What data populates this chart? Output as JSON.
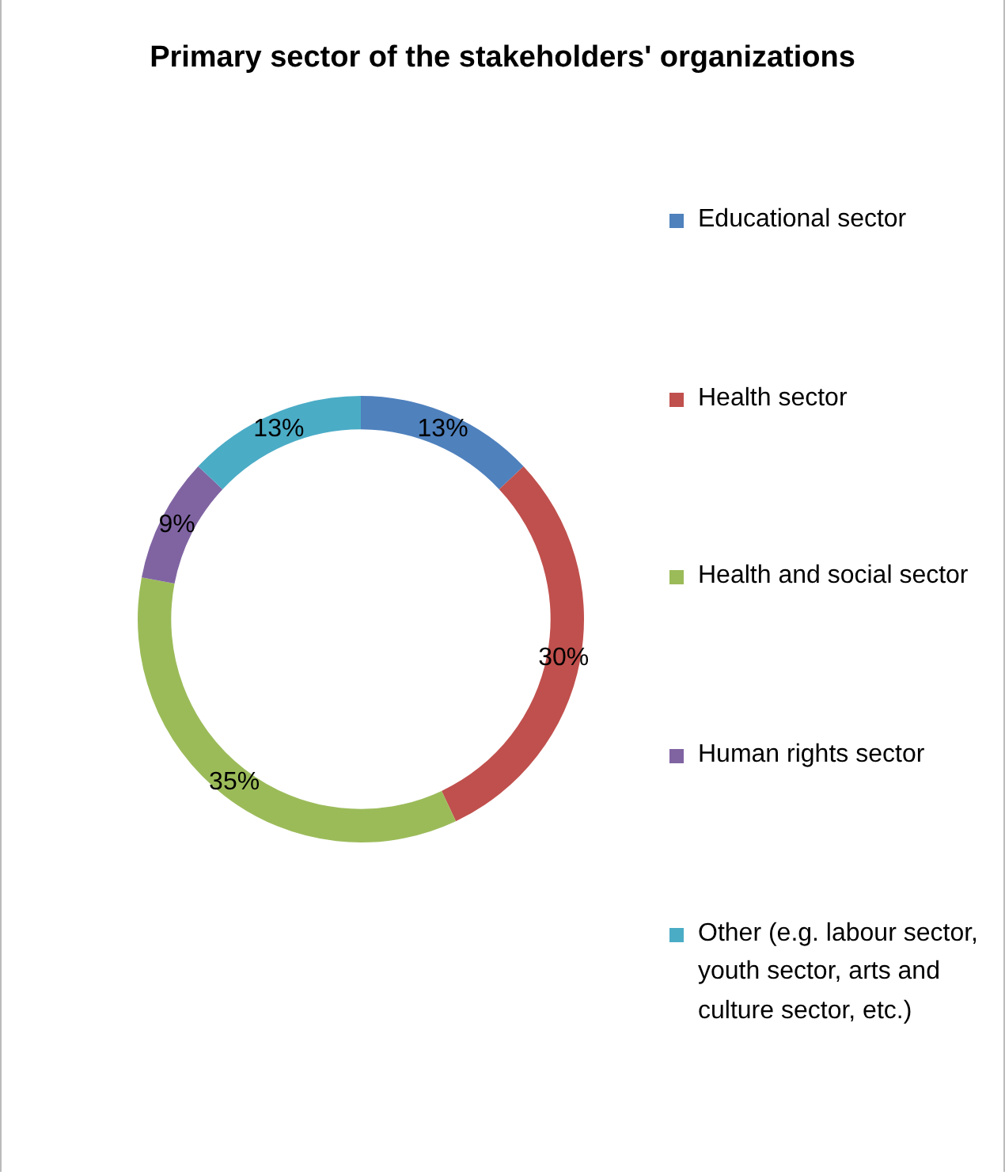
{
  "chart_data": {
    "type": "donut",
    "title": "Primary sector of the stakeholders' organizations",
    "categories": [
      "Educational sector",
      "Health sector",
      "Health and social sector",
      "Human rights sector",
      "Other (e.g. labour sector, youth sector, arts and culture sector, etc.)"
    ],
    "values": [
      13,
      30,
      35,
      9,
      13
    ],
    "colors": [
      "#4f81bd",
      "#c0504d",
      "#9bbb59",
      "#8064a2",
      "#4bacc6"
    ],
    "value_labels": [
      "13%",
      "30%",
      "35%",
      "9%",
      "13%"
    ],
    "legend": "right"
  }
}
